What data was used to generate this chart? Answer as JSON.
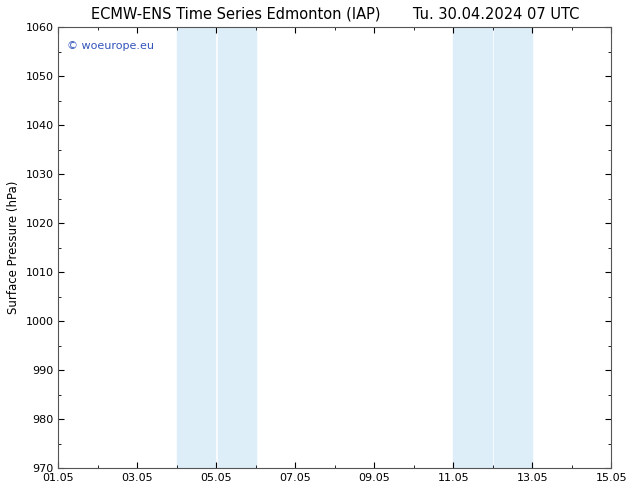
{
  "title_left": "ECMW-ENS Time Series Edmonton (IAP)",
  "title_right": "Tu. 30.04.2024 07 UTC",
  "ylabel": "Surface Pressure (hPa)",
  "ylim": [
    970,
    1060
  ],
  "yticks": [
    970,
    980,
    990,
    1000,
    1010,
    1020,
    1030,
    1040,
    1050,
    1060
  ],
  "xlim_start": 0,
  "xlim_end": 14,
  "xtick_positions": [
    0,
    2,
    4,
    6,
    8,
    10,
    12,
    14
  ],
  "xtick_labels": [
    "01.05",
    "03.05",
    "05.05",
    "07.05",
    "09.05",
    "11.05",
    "13.05",
    "15.05"
  ],
  "shaded_bands": [
    {
      "x_start": 3.0,
      "x_end": 4.0,
      "color": "#ddeef8"
    },
    {
      "x_start": 4.0,
      "x_end": 5.0,
      "color": "#ddeef8"
    },
    {
      "x_start": 10.0,
      "x_end": 11.0,
      "color": "#ddeef8"
    },
    {
      "x_start": 11.0,
      "x_end": 12.0,
      "color": "#ddeef8"
    }
  ],
  "watermark_text": "© woeurope.eu",
  "watermark_color": "#3355bb",
  "bg_color": "#ffffff",
  "plot_bg_color": "#ffffff",
  "title_fontsize": 10.5,
  "axis_label_fontsize": 8.5,
  "tick_fontsize": 8,
  "grid_color": "#cccccc",
  "border_color": "#555555"
}
